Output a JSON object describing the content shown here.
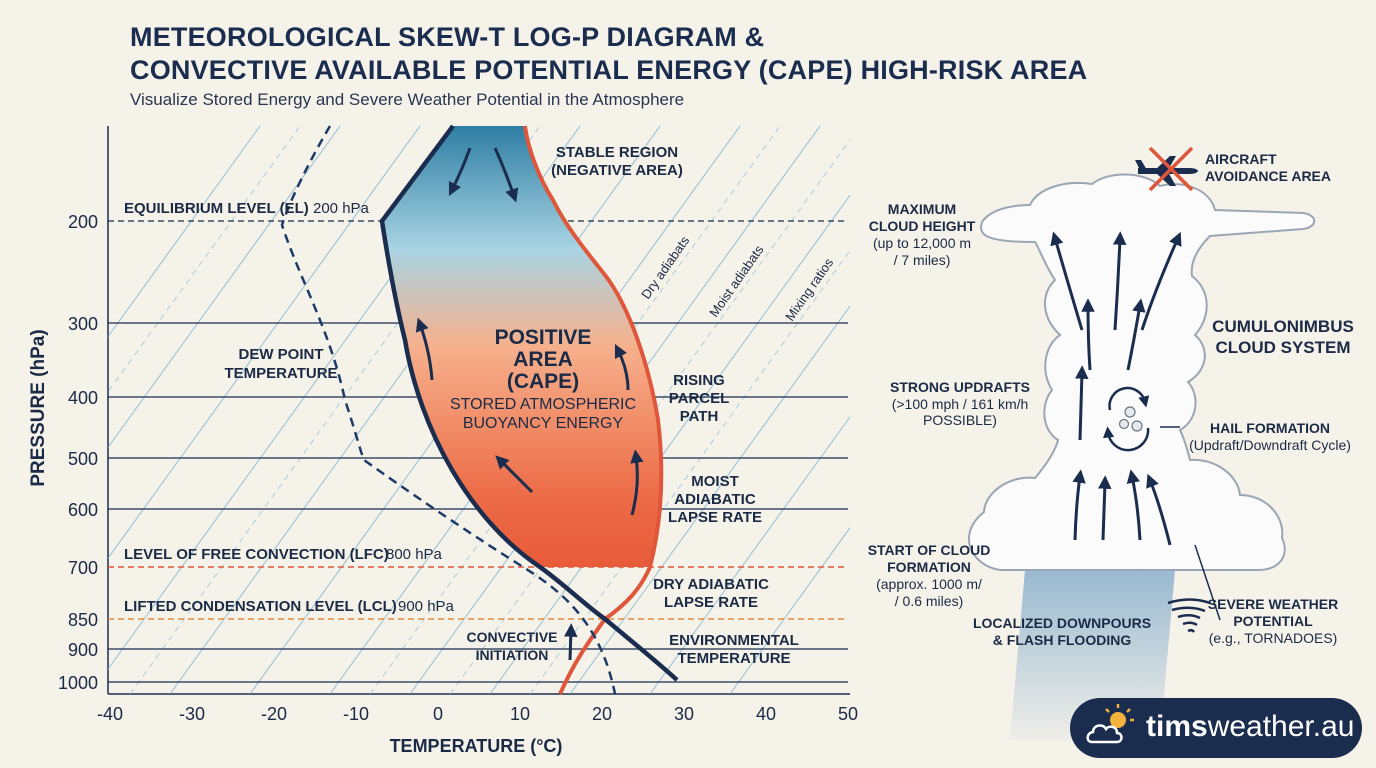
{
  "header": {
    "title_line1": "METEOROLOGICAL SKEW-T LOG-P DIAGRAM &",
    "title_line2": "CONVECTIVE AVAILABLE POTENTIAL ENERGY (CAPE) HIGH-RISK AREA",
    "subtitle": "Visualize Stored Energy and Severe Weather Potential in the Atmosphere"
  },
  "axes": {
    "y_label": "PRESSURE (hPa)",
    "x_label": "TEMPERATURE (°C)",
    "y_ticks": [
      "200",
      "300",
      "400",
      "500",
      "600",
      "700",
      "850",
      "900",
      "1000"
    ],
    "x_ticks": [
      "-40",
      "-30",
      "-20",
      "-10",
      "0",
      "10",
      "20",
      "30",
      "40",
      "50"
    ]
  },
  "levels": {
    "el_label": "EQUILIBRIUM LEVEL (EL)",
    "el_value": "200 hPa",
    "lfc_label": "LEVEL OF FREE CONVECTION (LFC)",
    "lfc_value": "800 hPa",
    "lcl_label": "LIFTED CONDENSATION LEVEL (LCL)",
    "lcl_value": "900 hPa"
  },
  "line_labels": {
    "dry_adiabats": "Dry adiabats",
    "moist_adiabats": "Moist adiabats",
    "mixing_ratios": "Mixing ratios"
  },
  "annotations": {
    "stable_region": [
      "STABLE REGION",
      "(NEGATIVE AREA)"
    ],
    "positive_area": [
      "POSITIVE",
      "AREA",
      "(CAPE)"
    ],
    "stored_energy": [
      "STORED ATMOSPHERIC",
      "BUOYANCY ENERGY"
    ],
    "dew_point": [
      "DEW POINT",
      "TEMPERATURE"
    ],
    "rising_parcel": [
      "RISING",
      "PARCEL",
      "PATH"
    ],
    "moist_lapse": [
      "MOIST",
      "ADIABATIC",
      "LAPSE RATE"
    ],
    "dry_lapse": [
      "DRY ADIABATIC",
      "LAPSE RATE"
    ],
    "environmental": [
      "ENVIRONMENTAL",
      "TEMPERATURE"
    ],
    "convective_initiation": [
      "CONVECTIVE",
      "INITIATION"
    ]
  },
  "cloud_panel": {
    "aircraft": [
      "AIRCRAFT",
      "AVOIDANCE AREA"
    ],
    "max_height_title": [
      "MAXIMUM",
      "CLOUD HEIGHT"
    ],
    "max_height_detail": [
      "(up to 12,000 m",
      "/ 7 miles)"
    ],
    "cumulonimbus": [
      "CUMULONIMBUS",
      "CLOUD SYSTEM"
    ],
    "updrafts_title": "STRONG UPDRAFTS",
    "updrafts_detail": [
      "(>100 mph / 161 km/h",
      "POSSIBLE)"
    ],
    "hail_title": "HAIL FORMATION",
    "hail_detail": "(Updraft/Downdraft Cycle)",
    "cloud_start_title": [
      "START OF CLOUD",
      "FORMATION"
    ],
    "cloud_start_detail": [
      "(approx. 1000 m/",
      "/ 0.6 miles)"
    ],
    "downpours": [
      "LOCALIZED DOWNPOURS",
      "& FLASH FLOODING"
    ],
    "severe_title": [
      "SEVERE WEATHER",
      "POTENTIAL"
    ],
    "severe_detail": "(e.g., TORNADOES)"
  },
  "brand": {
    "name_bold": "tims",
    "name_rest": "weather.au"
  },
  "colors": {
    "navy": "#1b2d4f",
    "teal": "#3d86a8",
    "orange": "#e0563a",
    "level_dash": "#e58a3c"
  }
}
